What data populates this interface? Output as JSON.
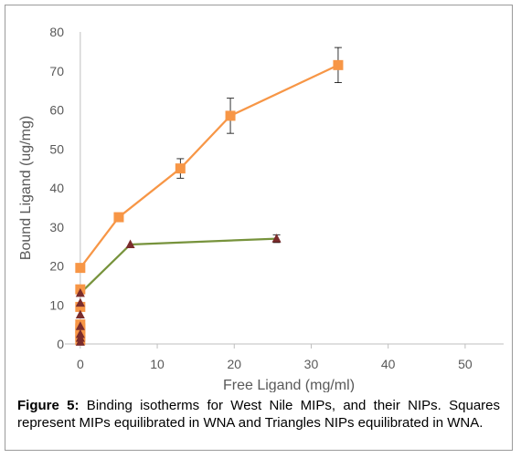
{
  "chart_data": {
    "type": "scatter",
    "xlabel": "Free Ligand (mg/ml)",
    "ylabel": "Bound Ligand (ug/mg)",
    "xlim": [
      -2,
      55
    ],
    "ylim": [
      0,
      80
    ],
    "xticks": [
      0,
      10,
      20,
      30,
      40,
      50
    ],
    "yticks": [
      0,
      10,
      20,
      30,
      40,
      50,
      60,
      70,
      80
    ],
    "grid": false,
    "legend": "none",
    "series": [
      {
        "marker": "square",
        "color": "#f79646",
        "line_color": "#f79646",
        "x": [
          0,
          0,
          0,
          0,
          0,
          0,
          0,
          0,
          5,
          13,
          19.5,
          33.5
        ],
        "y": [
          1,
          2,
          3,
          4,
          5,
          9.5,
          14,
          19.5,
          32.5,
          45,
          58.5,
          71.5
        ],
        "error": [
          0,
          0,
          0,
          0,
          0,
          0,
          0,
          0,
          0,
          2.5,
          4.5,
          4.5
        ],
        "line_from_index": 7
      },
      {
        "marker": "triangle",
        "color": "#7b2c2c",
        "line_color": "#77933c",
        "x": [
          0,
          0,
          0,
          0,
          0,
          0,
          0,
          6.5,
          25.5
        ],
        "y": [
          0.5,
          1.5,
          2.5,
          4.5,
          7.5,
          10.5,
          13,
          25.5,
          27
        ],
        "error": [
          0,
          0,
          0,
          0,
          0,
          0,
          0,
          0,
          1
        ],
        "line_from_index": 6
      }
    ]
  },
  "caption": {
    "label": "Figure 5:",
    "text": " Binding isotherms for West Nile MIPs, and their NIPs. Squares represent MIPs equilibrated in WNA and Triangles NIPs equilibrated in WNA."
  }
}
